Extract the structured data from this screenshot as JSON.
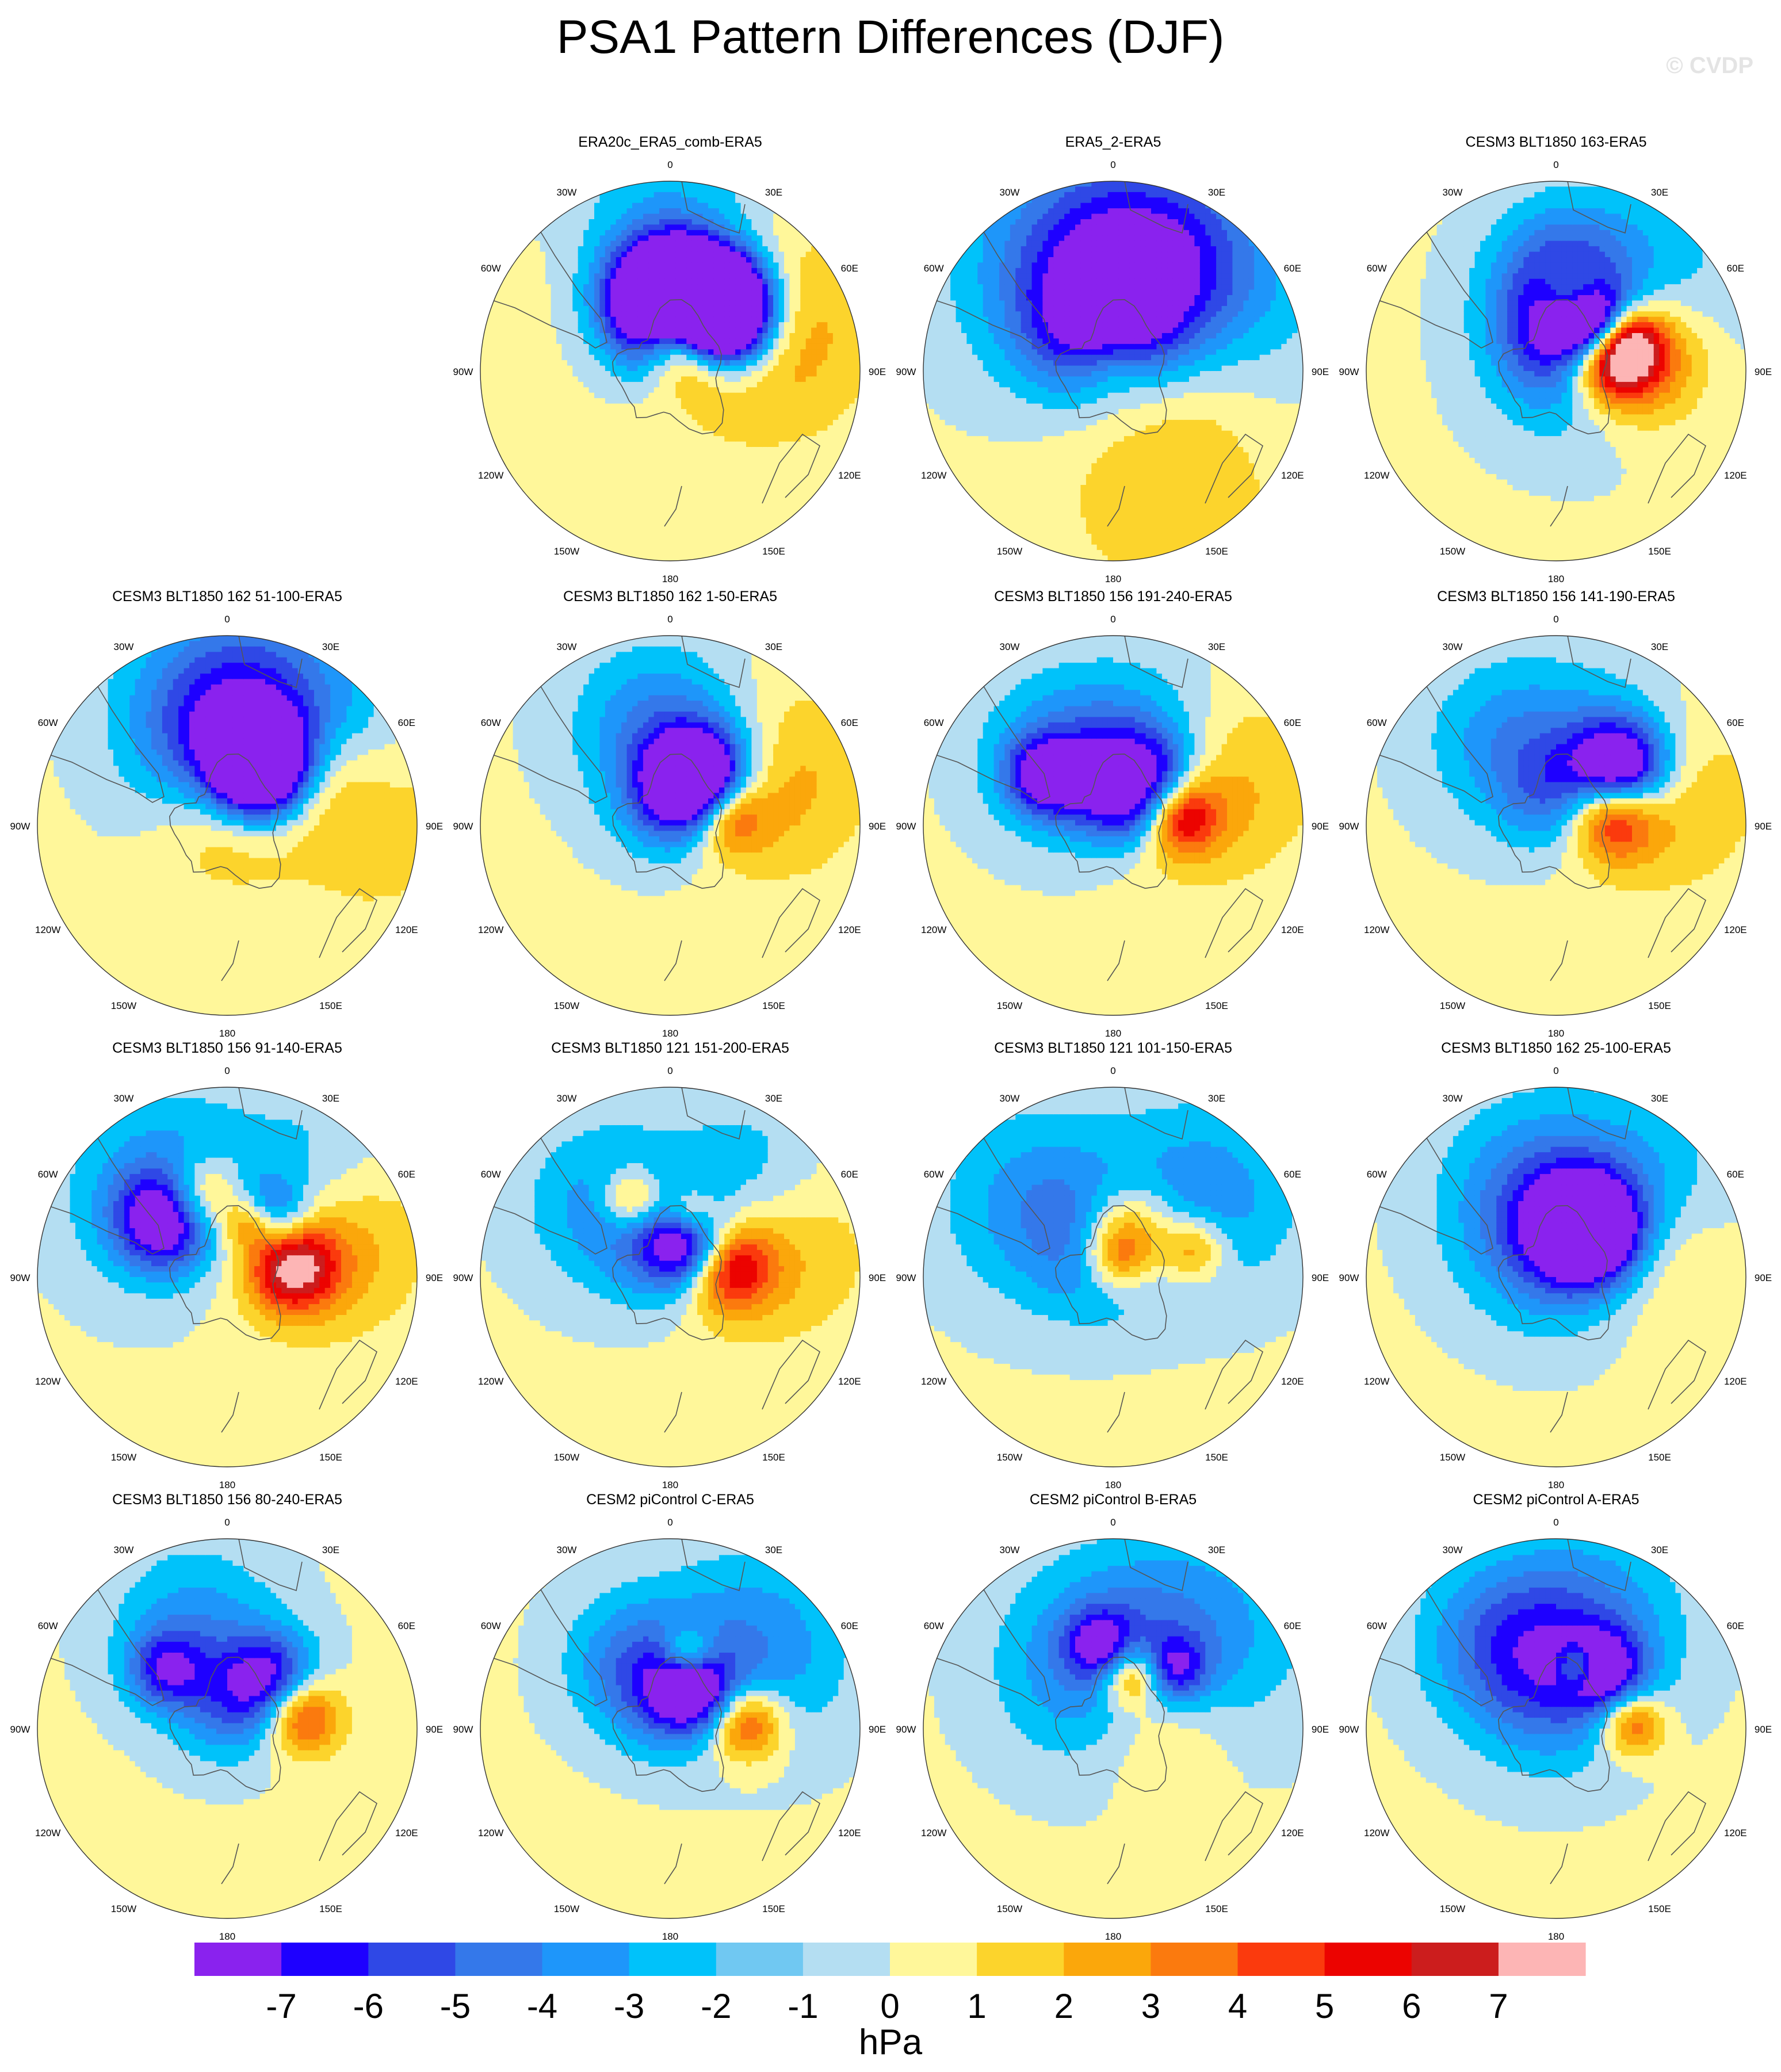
{
  "figure": {
    "title": "PSA1 Pattern Differences (DJF)",
    "credit": "© CVDP",
    "units": "hPa"
  },
  "map_labels": {
    "lon": [
      {
        "text": "0",
        "deg": 0
      },
      {
        "text": "30E",
        "deg": 30
      },
      {
        "text": "60E",
        "deg": 60
      },
      {
        "text": "90E",
        "deg": 90
      },
      {
        "text": "120E",
        "deg": 120
      },
      {
        "text": "150E",
        "deg": 150
      },
      {
        "text": "180",
        "deg": 180
      },
      {
        "text": "150W",
        "deg": 210
      },
      {
        "text": "120W",
        "deg": 240
      },
      {
        "text": "90W",
        "deg": 270
      },
      {
        "text": "60W",
        "deg": 300
      },
      {
        "text": "30W",
        "deg": 330
      }
    ]
  },
  "colorbar": {
    "ticks": [
      "-7",
      "-6",
      "-5",
      "-4",
      "-3",
      "-2",
      "-1",
      "0",
      "1",
      "2",
      "3",
      "4",
      "5",
      "6",
      "7"
    ],
    "colors": [
      "#8a22ee",
      "#1e00ff",
      "#2f48e6",
      "#3478ea",
      "#1e96fa",
      "#00c2fa",
      "#70c8f2",
      "#b4def2",
      "#fff79a",
      "#fcd42c",
      "#fba70b",
      "#fb7a0e",
      "#fb3a0d",
      "#ec0300",
      "#cc1d1d",
      "#fdb5b5"
    ]
  },
  "panels": [
    {
      "title": "ERA20c_ERA5_comb-ERA5",
      "col": 1,
      "row": 0,
      "blobs": [
        [
          0.22,
          0.12,
          0.14,
          0.96,
          10
        ],
        [
          0.3,
          0.55,
          0.3,
          0.24,
          10
        ],
        [
          0.15,
          0.82,
          0.16,
          0.95,
          10
        ],
        [
          0.25,
          0.3,
          0.2,
          -0.85,
          12
        ],
        [
          0.33,
          0.55,
          0.22,
          -0.95,
          11
        ],
        [
          0.45,
          0.7,
          0.18,
          -0.75,
          12
        ],
        [
          0.4,
          -0.05,
          0.23,
          -1.05,
          11
        ],
        [
          0.48,
          0.05,
          0.06,
          -0.6,
          20
        ],
        [
          0.75,
          -0.1,
          0.5,
          -0.35,
          8
        ],
        [
          0.68,
          -0.55,
          0.4,
          0.25,
          7
        ],
        [
          0.55,
          1.1,
          0.4,
          0.35,
          9
        ]
      ]
    },
    {
      "title": "ERA5_2-ERA5",
      "col": 2,
      "row": 0,
      "blobs": [
        [
          0.65,
          -0.3,
          0.45,
          -0.55,
          6
        ],
        [
          0.55,
          0.3,
          0.35,
          -0.5,
          8
        ],
        [
          0.2,
          0.45,
          0.25,
          -0.45,
          8
        ],
        [
          0.05,
          0.0,
          0.15,
          0.3,
          8
        ],
        [
          0.3,
          -0.65,
          0.25,
          -0.35,
          8
        ],
        [
          0.65,
          0.75,
          0.45,
          -0.3,
          8
        ],
        [
          0.25,
          1.4,
          0.3,
          0.4,
          6
        ],
        [
          0.7,
          2.7,
          0.4,
          0.3,
          6
        ]
      ]
    },
    {
      "title": "CESM3 BLT1850 163-ERA5",
      "col": 3,
      "row": 0,
      "blobs": [
        [
          0.3,
          1.35,
          0.16,
          0.95,
          8
        ],
        [
          0.45,
          1.4,
          0.25,
          0.55,
          10
        ],
        [
          0.2,
          0.1,
          0.22,
          -0.4,
          8
        ],
        [
          0.33,
          0.55,
          0.13,
          -0.95,
          10
        ],
        [
          0.4,
          0.25,
          0.12,
          0.7,
          10
        ],
        [
          0.55,
          0.8,
          0.4,
          -0.4,
          6
        ],
        [
          0.5,
          0.05,
          0.25,
          -0.4,
          9
        ],
        [
          0.12,
          0.9,
          0.3,
          -0.35,
          8
        ],
        [
          0.42,
          1.2,
          0.12,
          0.5,
          8
        ]
      ]
    },
    {
      "title": "CESM3 BLT1850 162 51-100-ERA5",
      "col": 0,
      "row": 1,
      "blobs": [
        [
          0.45,
          -0.1,
          0.3,
          -0.5,
          7
        ],
        [
          0.35,
          0.55,
          0.18,
          -1.1,
          11
        ],
        [
          0.05,
          0.0,
          0.25,
          0.4,
          7
        ],
        [
          0.7,
          0.1,
          0.4,
          -0.4,
          9
        ],
        [
          0.7,
          1.4,
          0.4,
          0.4,
          6
        ],
        [
          0.5,
          1.05,
          0.22,
          0.4,
          9
        ],
        [
          0.6,
          0.9,
          0.35,
          -0.4,
          8
        ]
      ]
    },
    {
      "title": "CESM3 BLT1850 162 1-50-ERA5",
      "col": 1,
      "row": 1,
      "blobs": [
        [
          0.3,
          1.35,
          0.14,
          0.55,
          10
        ],
        [
          0.28,
          0.55,
          0.17,
          -0.95,
          11
        ],
        [
          0.55,
          1.1,
          0.35,
          0.35,
          9
        ],
        [
          0.4,
          0.45,
          0.3,
          -0.4,
          8
        ],
        [
          0.55,
          -0.2,
          0.3,
          -0.3,
          8
        ],
        [
          0.1,
          0.0,
          0.2,
          -0.35,
          8
        ]
      ]
    },
    {
      "title": "CESM3 BLT1850 156 191-240-ERA5",
      "col": 2,
      "row": 1,
      "blobs": [
        [
          0.35,
          1.4,
          0.14,
          0.75,
          9
        ],
        [
          0.25,
          0.6,
          0.17,
          -0.85,
          11
        ],
        [
          0.45,
          -0.95,
          0.14,
          -0.55,
          10
        ],
        [
          0.25,
          0.3,
          0.12,
          0.5,
          10
        ],
        [
          0.55,
          1.1,
          0.35,
          0.35,
          9
        ],
        [
          0.5,
          0.5,
          0.3,
          -0.4,
          8
        ],
        [
          0.45,
          -0.6,
          0.3,
          -0.4,
          8
        ],
        [
          0.2,
          -0.2,
          0.2,
          -0.35,
          8
        ]
      ]
    },
    {
      "title": "CESM3 BLT1850 156 141-190-ERA5",
      "col": 3,
      "row": 1,
      "blobs": [
        [
          0.3,
          1.35,
          0.16,
          0.85,
          8
        ],
        [
          0.45,
          0.85,
          0.17,
          -0.9,
          10
        ],
        [
          0.55,
          1.2,
          0.35,
          0.4,
          8
        ],
        [
          0.5,
          0.7,
          0.32,
          -0.4,
          8
        ],
        [
          0.5,
          -0.5,
          0.3,
          -0.35,
          8
        ],
        [
          0.15,
          0.0,
          0.2,
          -0.35,
          8
        ]
      ]
    },
    {
      "title": "CESM3 BLT1850 156 91-140-ERA5",
      "col": 0,
      "row": 2,
      "blobs": [
        [
          0.35,
          1.4,
          0.16,
          0.75,
          9
        ],
        [
          0.45,
          -0.85,
          0.17,
          -0.65,
          10
        ],
        [
          0.4,
          0.65,
          0.14,
          -0.45,
          10
        ],
        [
          0.45,
          -0.3,
          0.14,
          0.45,
          10
        ],
        [
          0.3,
          0.4,
          0.1,
          0.4,
          10
        ],
        [
          0.55,
          1.1,
          0.35,
          0.4,
          9
        ],
        [
          0.55,
          -0.6,
          0.35,
          -0.4,
          8
        ],
        [
          0.7,
          0.7,
          0.3,
          -0.35,
          8
        ]
      ]
    },
    {
      "title": "CESM3 BLT1850 121 151-200-ERA5",
      "col": 1,
      "row": 2,
      "blobs": [
        [
          0.3,
          1.35,
          0.16,
          0.75,
          9
        ],
        [
          0.2,
          0.6,
          0.15,
          -0.65,
          10
        ],
        [
          0.45,
          -0.45,
          0.12,
          0.45,
          10
        ],
        [
          0.35,
          0.3,
          0.1,
          0.4,
          10
        ],
        [
          0.5,
          -0.7,
          0.3,
          -0.35,
          8
        ],
        [
          0.15,
          -0.1,
          0.22,
          -0.4,
          8
        ],
        [
          0.65,
          0.7,
          0.3,
          -0.35,
          8
        ],
        [
          0.55,
          1.2,
          0.35,
          0.35,
          8
        ]
      ]
    },
    {
      "title": "CESM3 BLT1850 121 101-150-ERA5",
      "col": 2,
      "row": 2,
      "blobs": [
        [
          0.25,
          0.35,
          0.18,
          0.55,
          10
        ],
        [
          0.45,
          1.25,
          0.12,
          0.4,
          9
        ],
        [
          0.15,
          -0.3,
          0.25,
          -0.4,
          7
        ],
        [
          0.65,
          0.85,
          0.35,
          -0.35,
          8
        ],
        [
          0.55,
          -0.8,
          0.35,
          -0.35,
          8
        ],
        [
          0.1,
          0.2,
          0.12,
          0.4,
          8
        ]
      ]
    },
    {
      "title": "CESM3 BLT1850 162 25-100-ERA5",
      "col": 3,
      "row": 2,
      "blobs": [
        [
          0.3,
          0.6,
          0.18,
          -0.95,
          11
        ],
        [
          0.15,
          0.0,
          0.3,
          -0.4,
          7
        ],
        [
          0.6,
          0.9,
          0.35,
          -0.35,
          8
        ],
        [
          0.45,
          -0.2,
          0.35,
          -0.4,
          8
        ],
        [
          0.55,
          1.3,
          0.3,
          0.35,
          8
        ]
      ]
    },
    {
      "title": "CESM3 BLT1850 156 80-240-ERA5",
      "col": 0,
      "row": 3,
      "blobs": [
        [
          0.4,
          1.4,
          0.14,
          0.55,
          10
        ],
        [
          0.35,
          0.7,
          0.17,
          -0.55,
          10
        ],
        [
          0.45,
          -0.8,
          0.14,
          -0.45,
          10
        ],
        [
          0.1,
          0.0,
          0.2,
          -0.35,
          8
        ],
        [
          0.55,
          -0.3,
          0.3,
          -0.35,
          8
        ]
      ]
    },
    {
      "title": "CESM2 piControl C-ERA5",
      "col": 1,
      "row": 3,
      "blobs": [
        [
          0.4,
          1.5,
          0.14,
          0.55,
          10
        ],
        [
          0.25,
          0.55,
          0.14,
          -0.55,
          10
        ],
        [
          0.4,
          0.25,
          0.1,
          0.5,
          10
        ],
        [
          0.15,
          0.0,
          0.2,
          -0.4,
          7
        ],
        [
          0.6,
          0.8,
          0.35,
          -0.4,
          8
        ],
        [
          0.4,
          -0.5,
          0.25,
          -0.4,
          8
        ]
      ]
    },
    {
      "title": "CESM2 piControl B-ERA5",
      "col": 2,
      "row": 3,
      "blobs": [
        [
          0.3,
          0.35,
          0.12,
          0.55,
          10
        ],
        [
          0.45,
          -0.15,
          0.12,
          -0.45,
          10
        ],
        [
          0.45,
          0.8,
          0.12,
          -0.45,
          10
        ],
        [
          0.35,
          -0.3,
          0.35,
          -0.4,
          8
        ],
        [
          0.65,
          0.7,
          0.4,
          -0.35,
          8
        ],
        [
          0.25,
          1.5,
          0.25,
          0.3,
          8
        ]
      ]
    },
    {
      "title": "CESM2 piControl A-ERA5",
      "col": 3,
      "row": 3,
      "blobs": [
        [
          0.4,
          1.5,
          0.12,
          0.5,
          10
        ],
        [
          0.4,
          0.7,
          0.15,
          -0.5,
          10
        ],
        [
          0.35,
          0.35,
          0.08,
          0.45,
          10
        ],
        [
          0.2,
          -0.1,
          0.3,
          -0.4,
          7
        ],
        [
          0.6,
          0.3,
          0.35,
          -0.35,
          8
        ],
        [
          0.55,
          -0.55,
          0.3,
          -0.4,
          8
        ]
      ]
    }
  ]
}
